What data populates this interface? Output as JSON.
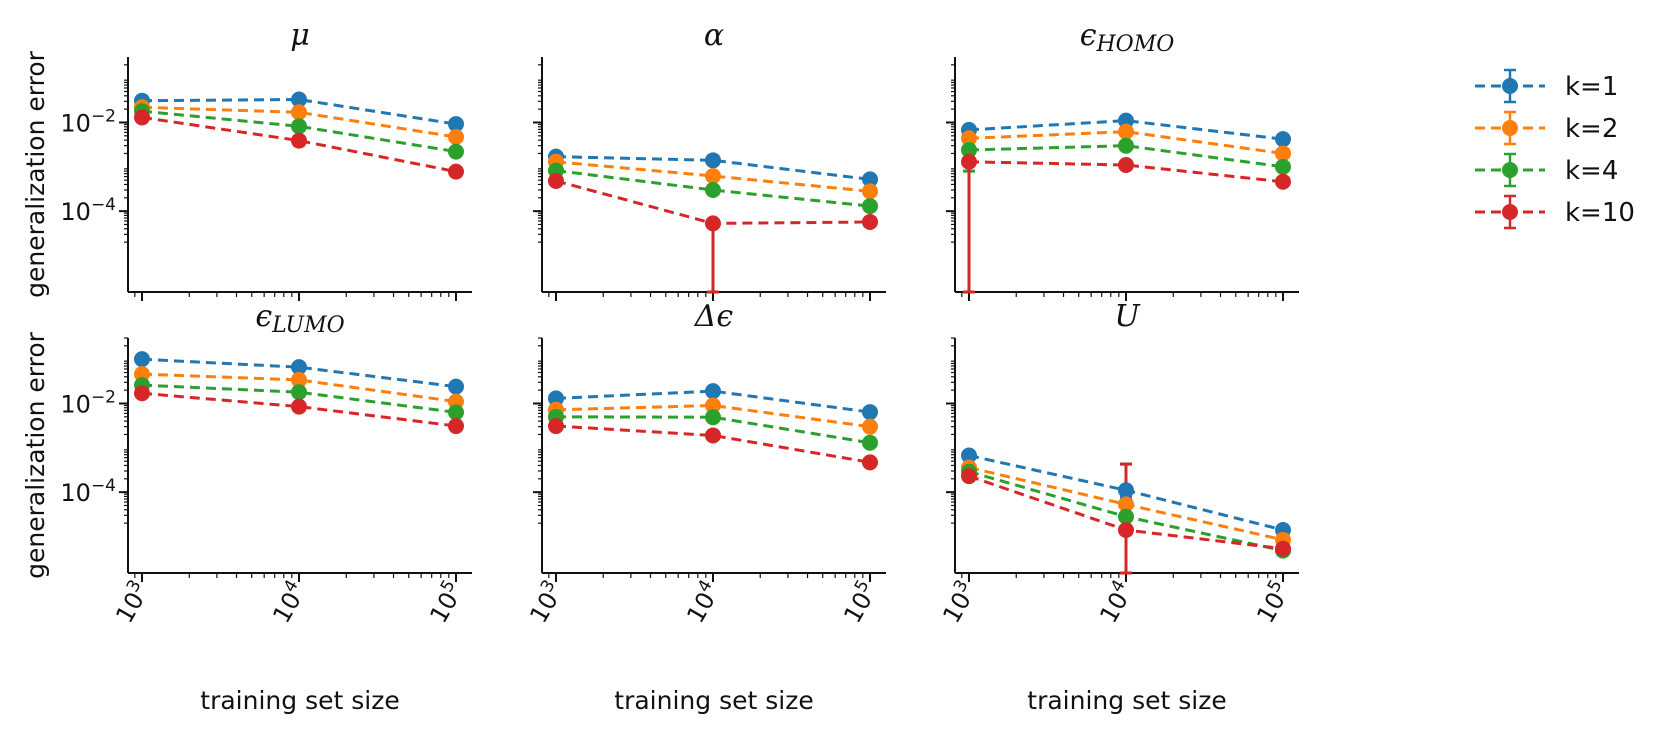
{
  "chart_data": {
    "type": "line",
    "layout": "2x3 grid of log-log panels",
    "xscale": "log",
    "yscale": "log",
    "x": [
      1000,
      10000,
      100000
    ],
    "xticklabels": [
      "10^3",
      "10^4",
      "10^5"
    ],
    "xlabel": "training set size",
    "ylabel": "generalization error",
    "yticks": [
      0.01,
      0.0001
    ],
    "yticklabels": [
      "10^-2",
      "10^-4"
    ],
    "ylim": [
      1.5e-06,
      0.3
    ],
    "legend": {
      "placement": "outside right",
      "entries": [
        "k=1",
        "k=2",
        "k=4",
        "k=10"
      ]
    },
    "series_colors": {
      "k=1": "#1f77b4",
      "k=2": "#ff7f0e",
      "k=4": "#2ca02c",
      "k=10": "#d62728"
    },
    "panels": [
      {
        "title": "μ",
        "title_sub": "",
        "series": [
          {
            "name": "k=1",
            "values": [
              0.031,
              0.033,
              0.0092
            ]
          },
          {
            "name": "k=2",
            "values": [
              0.022,
              0.017,
              0.0047
            ]
          },
          {
            "name": "k=4",
            "values": [
              0.018,
              0.0082,
              0.0022
            ]
          },
          {
            "name": "k=10",
            "values": [
              0.013,
              0.0039,
              0.00078
            ]
          }
        ],
        "errorbars": [
          {
            "series": "k=10",
            "x": 10000,
            "low": 0.0031,
            "high": 0.0048
          }
        ]
      },
      {
        "title": "α",
        "title_sub": "",
        "series": [
          {
            "name": "k=1",
            "values": [
              0.0017,
              0.0014,
              0.00052
            ]
          },
          {
            "name": "k=2",
            "values": [
              0.0013,
              0.00062,
              0.00028
            ]
          },
          {
            "name": "k=4",
            "values": [
              0.00082,
              0.0003,
              0.00013
            ]
          },
          {
            "name": "k=10",
            "values": [
              0.00048,
              5.3e-05,
              5.7e-05
            ]
          }
        ],
        "errorbars": [
          {
            "series": "k=10",
            "x": 10000,
            "low": 1.5e-06,
            "high": 5.3e-05
          }
        ]
      },
      {
        "title": "ϵ",
        "title_sub": "HOMO",
        "series": [
          {
            "name": "k=1",
            "values": [
              0.0068,
              0.011,
              0.0042
            ]
          },
          {
            "name": "k=2",
            "values": [
              0.0044,
              0.0062,
              0.002
            ]
          },
          {
            "name": "k=4",
            "values": [
              0.0024,
              0.003,
              0.001
            ]
          },
          {
            "name": "k=10",
            "values": [
              0.0013,
              0.0011,
              0.00046
            ]
          }
        ],
        "errorbars": [
          {
            "series": "k=4",
            "x": 1000,
            "low": 0.0008,
            "high": 0.0028
          },
          {
            "series": "k=10",
            "x": 1000,
            "low": 1.5e-06,
            "high": 0.0014
          }
        ]
      },
      {
        "title": "ϵ",
        "title_sub": "LUMO",
        "series": [
          {
            "name": "k=1",
            "values": [
              0.1,
              0.066,
              0.024
            ]
          },
          {
            "name": "k=2",
            "values": [
              0.046,
              0.034,
              0.011
            ]
          },
          {
            "name": "k=4",
            "values": [
              0.026,
              0.018,
              0.0063
            ]
          },
          {
            "name": "k=10",
            "values": [
              0.017,
              0.0085,
              0.0031
            ]
          }
        ],
        "errorbars": []
      },
      {
        "title": "Δϵ",
        "title_sub": "",
        "series": [
          {
            "name": "k=1",
            "values": [
              0.013,
              0.019,
              0.0064
            ]
          },
          {
            "name": "k=2",
            "values": [
              0.0072,
              0.009,
              0.003
            ]
          },
          {
            "name": "k=4",
            "values": [
              0.005,
              0.0049,
              0.0013
            ]
          },
          {
            "name": "k=10",
            "values": [
              0.0031,
              0.0019,
              0.00047
            ]
          }
        ],
        "errorbars": []
      },
      {
        "title": "U",
        "title_sub": "",
        "series": [
          {
            "name": "k=1",
            "values": [
              0.00067,
              0.00011,
              1.4e-05
            ]
          },
          {
            "name": "k=2",
            "values": [
              0.00036,
              5.3e-05,
              8.4e-06
            ]
          },
          {
            "name": "k=4",
            "values": [
              0.00029,
              2.8e-05,
              4.8e-06
            ]
          },
          {
            "name": "k=10",
            "values": [
              0.00023,
              1.4e-05,
              5.3e-06
            ]
          }
        ],
        "errorbars": [
          {
            "series": "k=1",
            "x": 10000,
            "low": 7.5e-05,
            "high": 0.00043
          },
          {
            "series": "k=10",
            "x": 10000,
            "low": 1.5e-06,
            "high": 0.00043
          }
        ]
      }
    ]
  }
}
